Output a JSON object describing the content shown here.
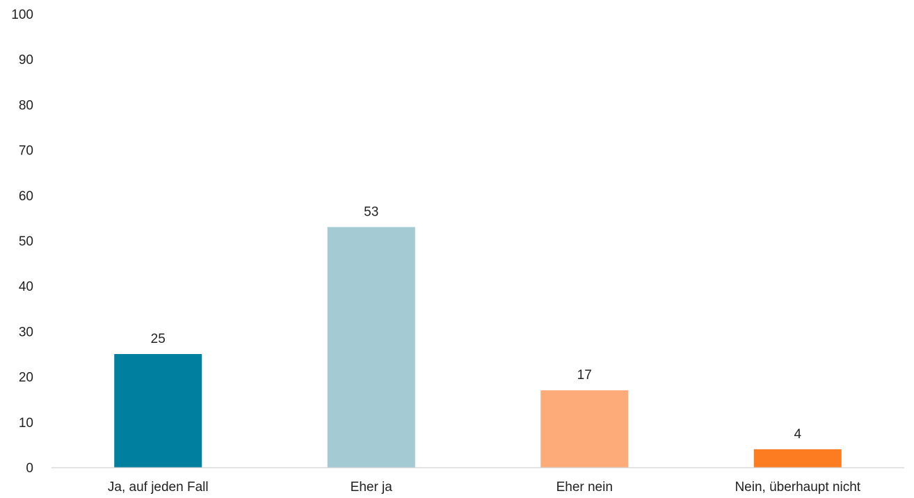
{
  "chart_data": {
    "type": "bar",
    "categories": [
      "Ja, auf jeden Fall",
      "Eher ja",
      "Eher nein",
      "Nein, überhaupt nicht"
    ],
    "values": [
      25,
      53,
      17,
      4
    ],
    "data_labels": [
      "25",
      "53",
      "17",
      "4"
    ],
    "colors": [
      "#007f9f",
      "#a4cbd4",
      "#fdab78",
      "#fd7c21"
    ],
    "ylim": [
      0,
      100
    ],
    "yticks": [
      0,
      10,
      20,
      30,
      40,
      50,
      60,
      70,
      80,
      90,
      100
    ],
    "ytick_labels": [
      "0",
      "10",
      "20",
      "30",
      "40",
      "50",
      "60",
      "70",
      "80",
      "90",
      "100"
    ],
    "grid": false,
    "legend": "none",
    "axis_color": "#d9d9d9"
  }
}
